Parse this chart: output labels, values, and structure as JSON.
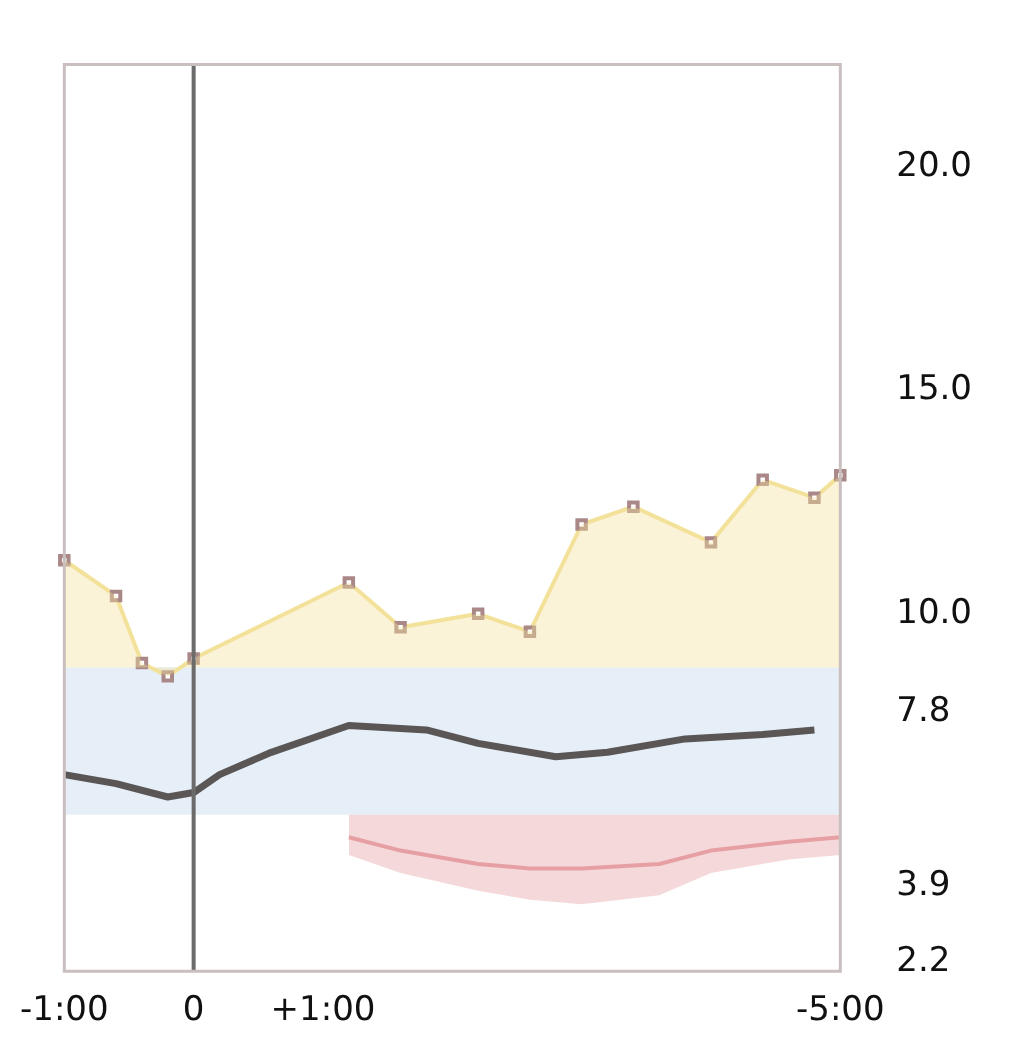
{
  "chart_data": {
    "type": "line",
    "ylim": [
      2,
      22.3
    ],
    "categories": [
      "-1:00",
      null,
      null,
      null,
      null,
      "0",
      null,
      null,
      null,
      null,
      "+1:00",
      null,
      null,
      null,
      null,
      null,
      null,
      null,
      null,
      null,
      null,
      null,
      null,
      null,
      null,
      null,
      null,
      null,
      null,
      null,
      "-5:00"
    ],
    "yticks": [
      {
        "value": 20,
        "label": "20.0"
      },
      {
        "value": 15,
        "label": "15.0"
      },
      {
        "value": 10,
        "label": "10.0"
      },
      {
        "value": 7.8,
        "label": "7.8"
      },
      {
        "value": 3.9,
        "label": "3.9"
      },
      {
        "value": 2.2,
        "label": "2.2"
      }
    ],
    "grid": false,
    "legend": false,
    "ref_lines": [
      {
        "axis": "x",
        "value": "0",
        "color": "#6b6b6b"
      }
    ],
    "bands": [
      {
        "axis": "y",
        "from": 5.5,
        "to": 8.8,
        "color": "#e6eff7"
      }
    ],
    "series": [
      {
        "color": "#f3e29a",
        "marker": "square",
        "values": [
          11.2,
          null,
          10.4,
          8.9,
          8.6,
          9.0,
          null,
          null,
          null,
          null,
          null,
          10.7,
          null,
          9.7,
          null,
          null,
          10.0,
          null,
          9.6,
          null,
          12.0,
          null,
          12.4,
          null,
          null,
          11.6,
          null,
          13.0,
          null,
          12.6,
          13.1
        ],
        "lower": [
          8.8,
          null,
          8.8,
          8.8,
          8.8,
          8.8,
          null,
          null,
          null,
          null,
          null,
          8.8,
          null,
          8.8,
          null,
          null,
          8.8,
          null,
          8.8,
          null,
          8.8,
          null,
          8.8,
          null,
          null,
          8.8,
          null,
          8.8,
          null,
          8.8,
          8.8
        ],
        "upper": [
          11.2,
          null,
          10.4,
          8.9,
          8.6,
          9.0,
          null,
          null,
          null,
          null,
          null,
          10.7,
          null,
          9.7,
          null,
          null,
          10.0,
          null,
          9.6,
          null,
          12.0,
          null,
          12.4,
          null,
          null,
          11.6,
          null,
          13.0,
          null,
          12.6,
          13.1
        ]
      },
      {
        "color": "#e7a0a3",
        "values": [
          null,
          null,
          null,
          null,
          null,
          null,
          null,
          null,
          null,
          null,
          null,
          5.0,
          null,
          4.7,
          null,
          null,
          4.4,
          null,
          4.3,
          null,
          4.3,
          null,
          null,
          4.4,
          null,
          4.7,
          null,
          null,
          4.9,
          null,
          5.0
        ],
        "lower": [
          null,
          null,
          null,
          null,
          null,
          null,
          null,
          null,
          null,
          null,
          null,
          4.6,
          null,
          4.2,
          null,
          null,
          3.8,
          null,
          3.6,
          null,
          3.5,
          null,
          null,
          3.7,
          null,
          4.2,
          null,
          null,
          4.5,
          null,
          4.6
        ],
        "upper": [
          null,
          null,
          null,
          null,
          null,
          null,
          null,
          null,
          null,
          null,
          null,
          5.5,
          null,
          5.5,
          null,
          null,
          5.5,
          null,
          5.5,
          null,
          5.5,
          null,
          null,
          5.5,
          null,
          5.5,
          null,
          null,
          5.5,
          null,
          5.5
        ]
      },
      {
        "color": "#5a5656",
        "line_style": "solid",
        "marker": "none",
        "values": [
          6.4,
          null,
          6.2,
          null,
          5.9,
          6.0,
          6.4,
          null,
          6.9,
          null,
          null,
          7.5,
          null,
          null,
          7.4,
          null,
          7.1,
          null,
          null,
          6.8,
          null,
          6.9,
          null,
          null,
          7.2,
          null,
          null,
          7.3,
          null,
          7.4,
          null
        ]
      }
    ]
  }
}
